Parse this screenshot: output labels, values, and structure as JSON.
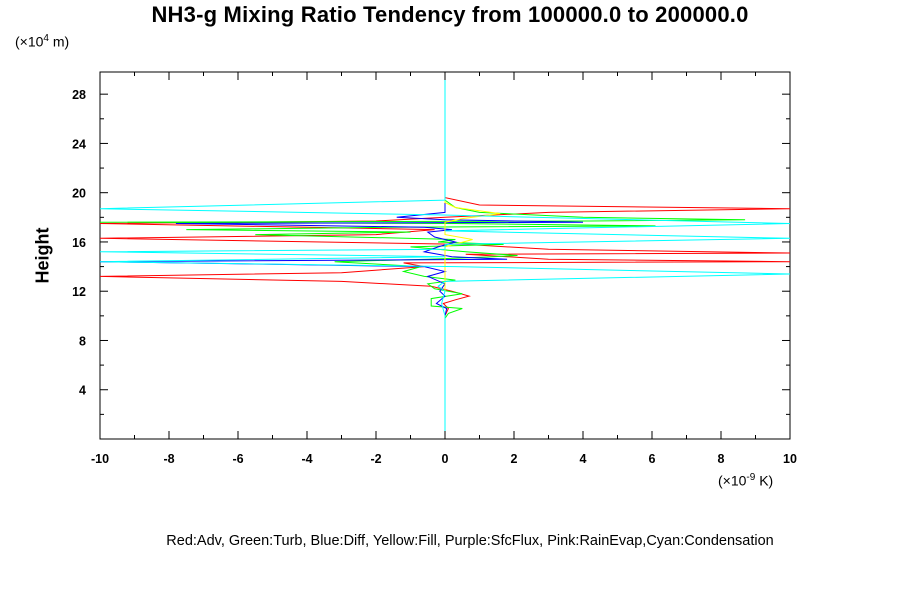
{
  "chart_data": {
    "type": "line",
    "title": "NH3-g Mixing Ratio Tendency from 100000.0 to 200000.0",
    "ylabel": "Height",
    "y_unit_prefix": "(×10",
    "y_unit_exp": "4",
    "y_unit_suffix": " m)",
    "x_unit_prefix": "(×10",
    "x_unit_exp": "-9",
    "x_unit_suffix": " K)",
    "legend_text": "Red:Adv, Green:Turb, Blue:Diff, Yellow:Fill, Purple:SfcFlux, Pink:RainEvap,Cyan:Condensation",
    "xlim": [
      -10,
      10
    ],
    "ylim": [
      0,
      29.8
    ],
    "x_ticks": [
      -10,
      -8,
      -6,
      -4,
      -2,
      0,
      2,
      4,
      6,
      8,
      10
    ],
    "y_ticks": [
      4,
      8,
      12,
      16,
      20,
      24,
      28
    ],
    "series": [
      {
        "name": "Adv",
        "color": "#ff0000",
        "points": [
          [
            0,
            1.8
          ],
          [
            0,
            10
          ],
          [
            0.1,
            10.6
          ],
          [
            -0.05,
            11
          ],
          [
            0.3,
            11.3
          ],
          [
            0.7,
            11.6
          ],
          [
            0.2,
            12
          ],
          [
            -0.4,
            12.4
          ],
          [
            -3,
            12.8
          ],
          [
            -10,
            13.2
          ],
          [
            -3,
            13.5
          ],
          [
            -0.6,
            14
          ],
          [
            -1.2,
            14.3
          ],
          [
            10,
            14.4
          ],
          [
            3,
            14.6
          ],
          [
            0.6,
            15
          ],
          [
            10,
            15.1
          ],
          [
            3,
            15.4
          ],
          [
            0.6,
            15.8
          ],
          [
            -10,
            16.3
          ],
          [
            -2,
            16.6
          ],
          [
            -0.3,
            17
          ],
          [
            -10,
            17.5
          ],
          [
            -2,
            17.7
          ],
          [
            0,
            18
          ],
          [
            3,
            18.4
          ],
          [
            10,
            18.7
          ],
          [
            1,
            19
          ],
          [
            0,
            19.6
          ],
          [
            0,
            29.8
          ]
        ]
      },
      {
        "name": "Turb",
        "color": "#00ff00",
        "points": [
          [
            0,
            1.8
          ],
          [
            0,
            9.8
          ],
          [
            0.1,
            10.2
          ],
          [
            0.5,
            10.6
          ],
          [
            -0.4,
            10.8
          ],
          [
            -0.4,
            11.4
          ],
          [
            0.5,
            11.8
          ],
          [
            -0.3,
            12.2
          ],
          [
            -0.5,
            12.6
          ],
          [
            0.3,
            12.9
          ],
          [
            -0.6,
            13.2
          ],
          [
            -1.2,
            13.6
          ],
          [
            -0.7,
            14
          ],
          [
            -3.2,
            14.4
          ],
          [
            -0.5,
            14.6
          ],
          [
            1.4,
            14.8
          ],
          [
            2.1,
            14.9
          ],
          [
            0.6,
            15.2
          ],
          [
            -1,
            15.6
          ],
          [
            1.7,
            15.8
          ],
          [
            -0.2,
            16
          ],
          [
            0.3,
            16.2
          ],
          [
            -5.5,
            16.6
          ],
          [
            -1,
            16.8
          ],
          [
            -7.5,
            17
          ],
          [
            -1.5,
            17.2
          ],
          [
            6.1,
            17.3
          ],
          [
            0.3,
            17.5
          ],
          [
            -10,
            17.6
          ],
          [
            4.2,
            17.7
          ],
          [
            8.7,
            17.8
          ],
          [
            4,
            18
          ],
          [
            1,
            18.4
          ],
          [
            0.3,
            18.8
          ],
          [
            0,
            19.4
          ],
          [
            0,
            29.8
          ]
        ]
      },
      {
        "name": "Diff",
        "color": "#0000ff",
        "points": [
          [
            0,
            1.8
          ],
          [
            0,
            10
          ],
          [
            0.05,
            10.6
          ],
          [
            -0.25,
            11
          ],
          [
            0,
            11.6
          ],
          [
            -0.15,
            12
          ],
          [
            0,
            12.6
          ],
          [
            -0.5,
            13.2
          ],
          [
            0,
            13.6
          ],
          [
            -0.6,
            14
          ],
          [
            -10,
            14.4
          ],
          [
            1.8,
            14.6
          ],
          [
            0.2,
            14.8
          ],
          [
            -0.6,
            15.2
          ],
          [
            -0.2,
            15.6
          ],
          [
            0.3,
            16
          ],
          [
            -0.3,
            16.4
          ],
          [
            -0.5,
            16.8
          ],
          [
            0.2,
            17
          ],
          [
            -0.6,
            17.2
          ],
          [
            -7.8,
            17.5
          ],
          [
            4,
            17.6
          ],
          [
            0,
            17.8
          ],
          [
            -1.4,
            18
          ],
          [
            0,
            18.4
          ],
          [
            0,
            29.8
          ]
        ]
      },
      {
        "name": "Fill",
        "color": "#ffff00",
        "points": [
          [
            0,
            12
          ],
          [
            0,
            15.6
          ],
          [
            0.8,
            16.2
          ],
          [
            0,
            16.6
          ],
          [
            0,
            17.6
          ],
          [
            0.5,
            17.9
          ],
          [
            1.6,
            18.3
          ],
          [
            0.3,
            18.8
          ],
          [
            0,
            19.2
          ],
          [
            0,
            29.8
          ]
        ]
      },
      {
        "name": "Condensation",
        "color": "#00ffff",
        "points": [
          [
            0,
            0
          ],
          [
            0,
            10
          ],
          [
            -0.1,
            11
          ],
          [
            0,
            12
          ],
          [
            -0.2,
            12.4
          ],
          [
            0,
            12.8
          ],
          [
            10,
            13.4
          ],
          [
            0.3,
            14
          ],
          [
            -10,
            14.4
          ],
          [
            0,
            14.8
          ],
          [
            -10,
            15.2
          ],
          [
            0,
            15.4
          ],
          [
            0,
            15.8
          ],
          [
            10,
            16.3
          ],
          [
            0,
            16.9
          ],
          [
            10,
            17.5
          ],
          [
            -0.2,
            18.2
          ],
          [
            -10,
            18.7
          ],
          [
            0,
            19.4
          ],
          [
            0,
            19.8
          ],
          [
            0,
            29.8
          ]
        ]
      }
    ],
    "grid": false,
    "legend_placement": "bottom"
  }
}
